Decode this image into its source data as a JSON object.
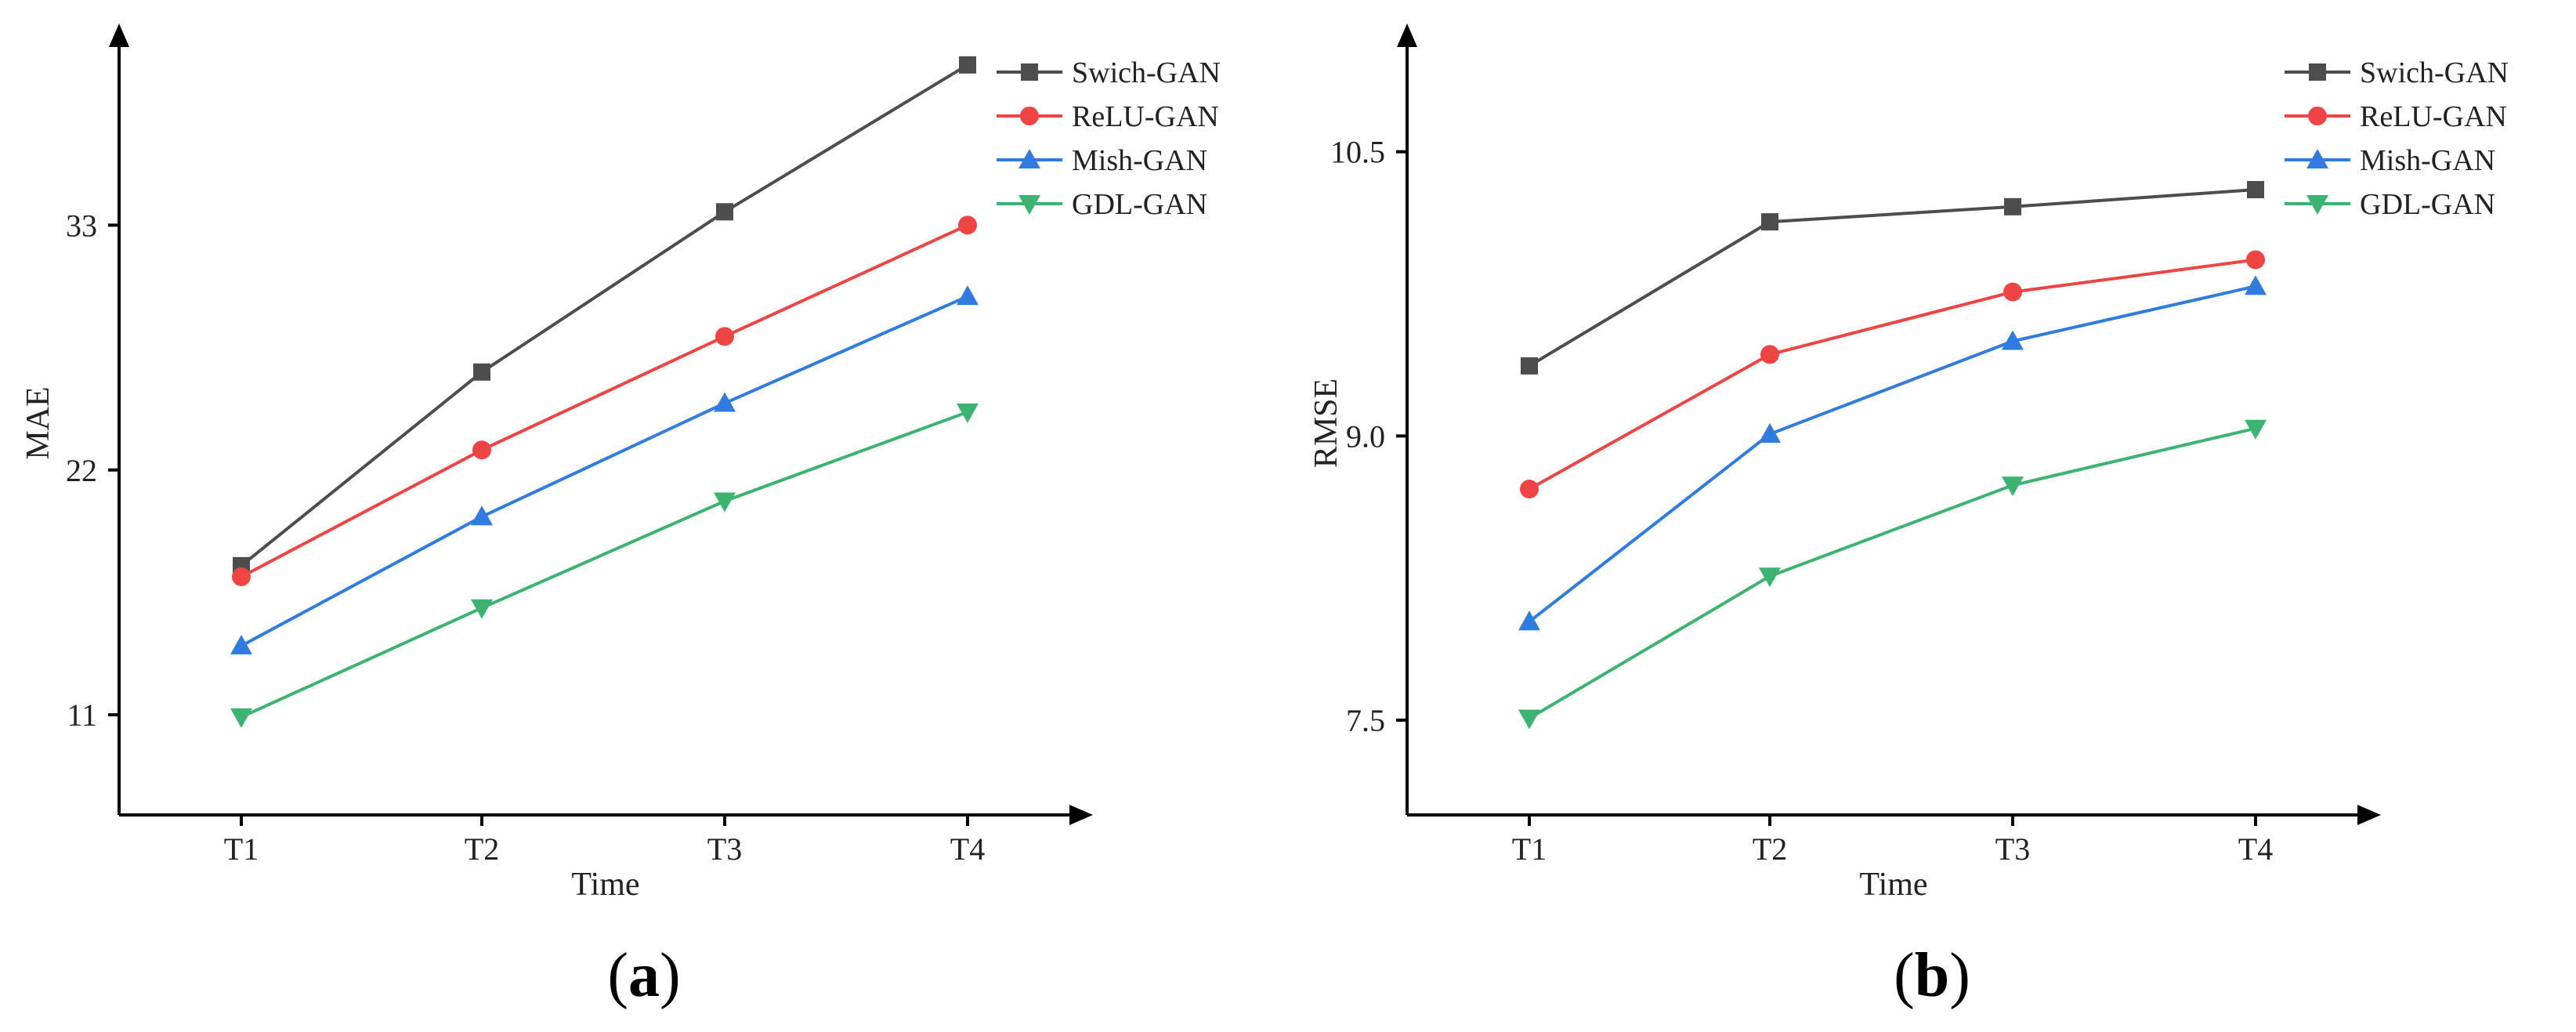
{
  "chart_data": [
    {
      "panel": "a",
      "type": "line",
      "caption": "a",
      "title": "",
      "xlabel": "Time",
      "ylabel": "MAE",
      "categories": [
        "T1",
        "T2",
        "T3",
        "T4"
      ],
      "yticks": [
        "11",
        "22",
        "33"
      ],
      "ylim": [
        6.5,
        40.3
      ],
      "legend_position": "top-right",
      "series": [
        {
          "name": "Swich-GAN",
          "color": "#4d4d4d",
          "marker": "square",
          "values": [
            17.7,
            26.4,
            33.6,
            40.2
          ]
        },
        {
          "name": "ReLU-GAN",
          "color": "#ef4444",
          "marker": "circle",
          "values": [
            17.2,
            22.9,
            28.0,
            33.0
          ]
        },
        {
          "name": "Mish-GAN",
          "color": "#2f7be0",
          "marker": "triangle-up",
          "values": [
            14.1,
            19.9,
            25.0,
            29.8
          ]
        },
        {
          "name": "GDL-GAN",
          "color": "#3cb371",
          "marker": "triangle-down",
          "values": [
            10.9,
            15.8,
            20.6,
            24.6
          ]
        }
      ]
    },
    {
      "panel": "b",
      "type": "line",
      "caption": "b",
      "title": "",
      "xlabel": "Time",
      "ylabel": "RMSE",
      "categories": [
        "T1",
        "T2",
        "T3",
        "T4"
      ],
      "yticks": [
        "7.5",
        "9.0",
        "10.5"
      ],
      "ylim": [
        7.0,
        10.97
      ],
      "legend_position": "top-right",
      "series": [
        {
          "name": "Swich-GAN",
          "color": "#4d4d4d",
          "marker": "square",
          "values": [
            9.37,
            10.13,
            10.21,
            10.3
          ]
        },
        {
          "name": "ReLU-GAN",
          "color": "#ef4444",
          "marker": "circle",
          "values": [
            8.72,
            9.43,
            9.76,
            9.93
          ]
        },
        {
          "name": "Mish-GAN",
          "color": "#2f7be0",
          "marker": "triangle-up",
          "values": [
            8.02,
            9.01,
            9.5,
            9.79
          ]
        },
        {
          "name": "GDL-GAN",
          "color": "#3cb371",
          "marker": "triangle-down",
          "values": [
            7.51,
            8.26,
            8.74,
            9.04
          ]
        }
      ]
    }
  ]
}
